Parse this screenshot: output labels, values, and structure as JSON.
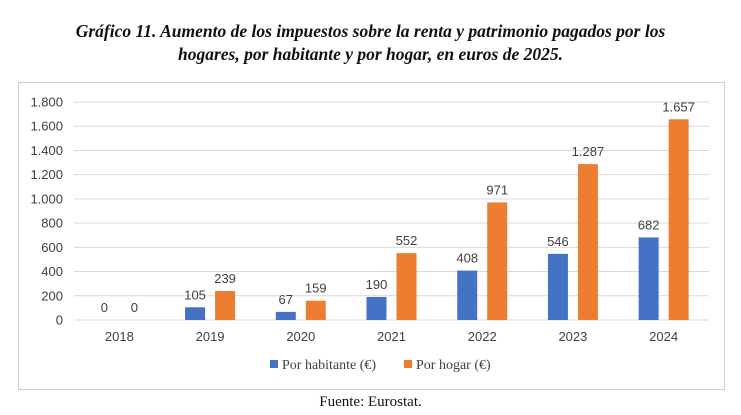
{
  "title_line1": "Gráfico 11. Aumento de los impuestos sobre la renta y patrimonio pagados por los",
  "title_line2": "hogares, por habitante y por hogar, en euros de 2025.",
  "source": "Fuente: Eurostat.",
  "colors": {
    "series1": "#4472c4",
    "series2": "#ed7d31",
    "grid": "#d9d9d9",
    "text": "#404040"
  },
  "chart_data": {
    "type": "bar",
    "title": "Gráfico 11. Aumento de los impuestos sobre la renta y patrimonio pagados por los hogares, por habitante y por hogar, en euros de 2025.",
    "categories": [
      "2018",
      "2019",
      "2020",
      "2021",
      "2022",
      "2023",
      "2024"
    ],
    "series": [
      {
        "name": "Por habitante (€)",
        "values": [
          0,
          105,
          67,
          190,
          408,
          546,
          682
        ],
        "labels": [
          "0",
          "105",
          "67",
          "190",
          "408",
          "546",
          "682"
        ]
      },
      {
        "name": "Por hogar (€)",
        "values": [
          0,
          239,
          159,
          552,
          971,
          1287,
          1657
        ],
        "labels": [
          "0",
          "239",
          "159",
          "552",
          "971",
          "1.287",
          "1.657"
        ]
      }
    ],
    "ylim": [
      0,
      1800
    ],
    "yticks": [
      0,
      200,
      400,
      600,
      800,
      1000,
      1200,
      1400,
      1600,
      1800
    ],
    "ytick_labels": [
      "0",
      "200",
      "400",
      "600",
      "800",
      "1.000",
      "1.200",
      "1.400",
      "1.600",
      "1.800"
    ],
    "grid": true,
    "legend": "bottom",
    "xlabel": "",
    "ylabel": ""
  }
}
